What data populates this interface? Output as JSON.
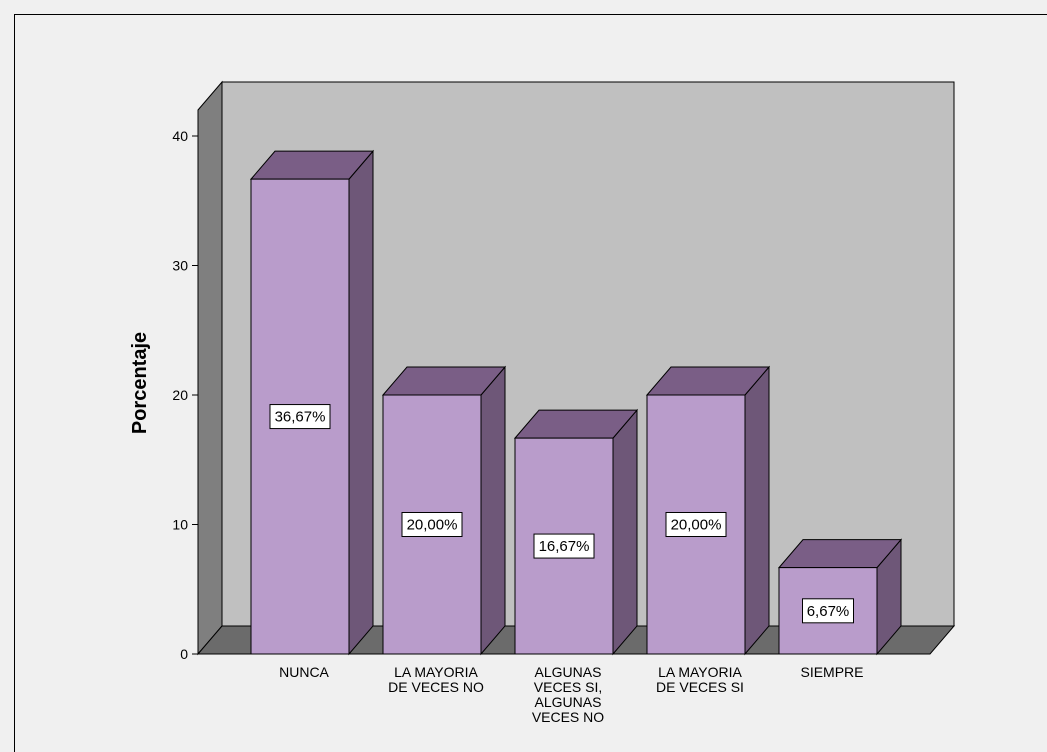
{
  "chart_data": {
    "type": "bar",
    "categories": [
      [
        "NUNCA"
      ],
      [
        "LA MAYORIA",
        "DE VECES NO"
      ],
      [
        "ALGUNAS",
        "VECES SI,",
        "ALGUNAS",
        "VECES NO"
      ],
      [
        "LA MAYORIA",
        "DE VECES SI"
      ],
      [
        "SIEMPRE"
      ]
    ],
    "values": [
      36.67,
      20.0,
      16.67,
      20.0,
      6.67
    ],
    "data_labels": [
      "36,67%",
      "20,00%",
      "16,67%",
      "20,00%",
      "6,67%"
    ],
    "title": "",
    "xlabel": "",
    "ylabel": "Porcentaje",
    "ylim": [
      0,
      40
    ],
    "yticks": [
      "0",
      "10",
      "20",
      "30",
      "40"
    ],
    "grid": false,
    "style": "3d",
    "colors": {
      "bar_front": "#b99ccb",
      "bar_top": "#7a5e86",
      "bar_side": "#6e5778",
      "plot_back": "#c0c0c0",
      "floor": "#6b6b6b",
      "left_wall": "#7f7f7f",
      "page_background": "#f0f0f0"
    }
  }
}
